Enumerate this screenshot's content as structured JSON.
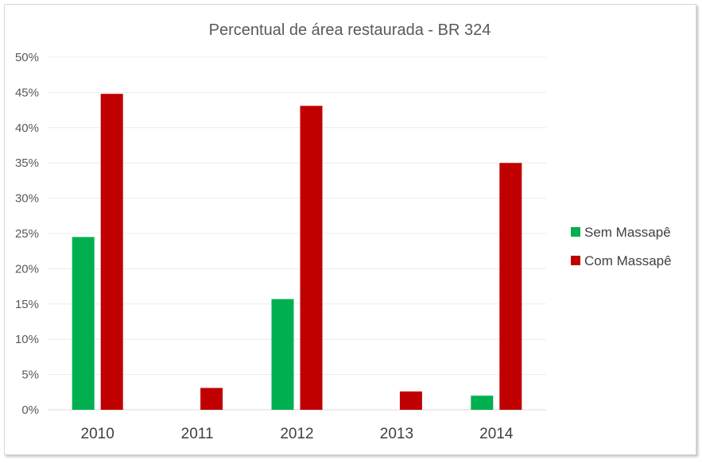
{
  "chart_data": {
    "type": "bar",
    "title": "Percentual de área restaurada - BR 324",
    "categories": [
      "2010",
      "2011",
      "2012",
      "2013",
      "2014"
    ],
    "series": [
      {
        "name": "Sem Massapê",
        "color": "#00b050",
        "values": [
          24.5,
          0,
          15.7,
          0,
          2.0
        ]
      },
      {
        "name": "Com Massapê",
        "color": "#c00000",
        "values": [
          44.8,
          3.1,
          43.1,
          2.6,
          35.0
        ]
      }
    ],
    "y_ticks": [
      "0%",
      "5%",
      "10%",
      "15%",
      "20%",
      "25%",
      "30%",
      "35%",
      "40%",
      "45%",
      "50%"
    ],
    "ylim": [
      0,
      50
    ],
    "y_unit": "percent",
    "grid": true,
    "legend_position": "right"
  }
}
